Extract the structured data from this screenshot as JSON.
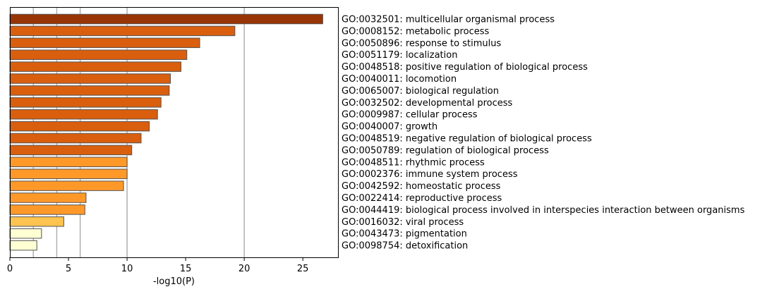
{
  "chart_data": {
    "type": "bar",
    "orientation": "horizontal",
    "xlabel": "-log10(P)",
    "xlim": [
      0,
      28
    ],
    "xticks": [
      0,
      5,
      10,
      15,
      20,
      25
    ],
    "reference_lines": [
      2,
      4,
      6,
      10,
      20
    ],
    "grid": false,
    "categories": [
      "GO:0032501: multicellular organismal process",
      "GO:0008152: metabolic process",
      "GO:0050896: response to stimulus",
      "GO:0051179: localization",
      "GO:0048518: positive regulation of biological process",
      "GO:0040011: locomotion",
      "GO:0065007: biological regulation",
      "GO:0032502: developmental process",
      "GO:0009987: cellular process",
      "GO:0040007: growth",
      "GO:0048519: negative regulation of biological process",
      "GO:0050789: regulation of biological process",
      "GO:0048511: rhythmic process",
      "GO:0002376: immune system process",
      "GO:0042592: homeostatic process",
      "GO:0022414: reproductive process",
      "GO:0044419: biological process involved in interspecies interaction between organisms",
      "GO:0016032: viral process",
      "GO:0043473: pigmentation",
      "GO:0098754: detoxification"
    ],
    "values": [
      26.7,
      19.2,
      16.2,
      15.1,
      14.6,
      13.7,
      13.6,
      12.9,
      12.6,
      11.9,
      11.2,
      10.4,
      10.0,
      10.0,
      9.7,
      6.5,
      6.4,
      4.6,
      2.7,
      2.3
    ],
    "colors": [
      "#993404",
      "#d95f0e",
      "#d95f0e",
      "#d95f0e",
      "#d95f0e",
      "#d95f0e",
      "#d95f0e",
      "#d95f0e",
      "#d95f0e",
      "#d95f0e",
      "#d95f0e",
      "#d95f0e",
      "#fe9929",
      "#fe9929",
      "#fe9929",
      "#fe9929",
      "#fe9929",
      "#fec44f",
      "#ffffd4",
      "#ffffd4"
    ]
  }
}
